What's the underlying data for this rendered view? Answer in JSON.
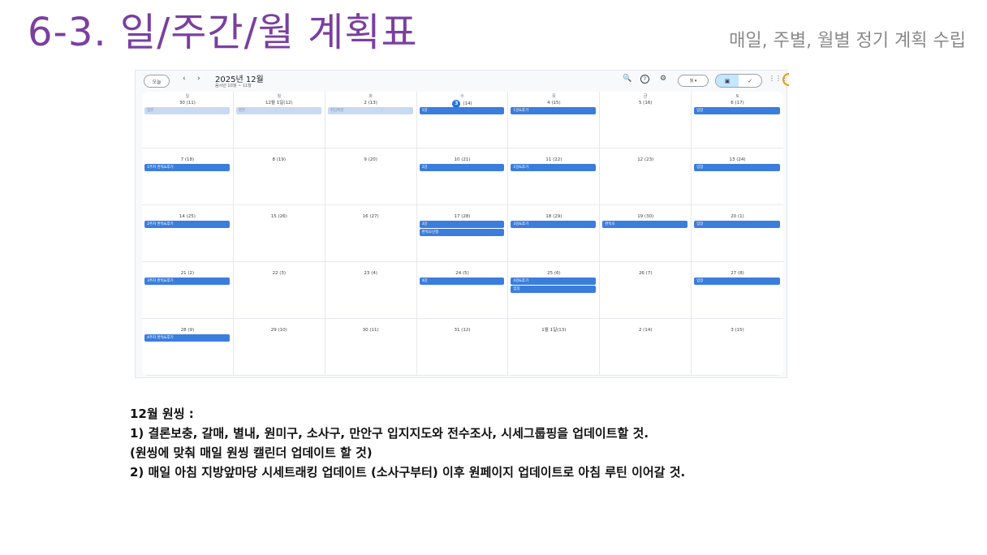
{
  "slide": {
    "title": "6-3. 일/주간/월 계획표",
    "subtitle": "매일, 주별, 월별 정기 계획 수립"
  },
  "calendar": {
    "today_button": "오늘",
    "prev_icon": "‹",
    "next_icon": "›",
    "month_title": "2025년 12월",
    "lunar_range": "음사년 10월 ~ 11월",
    "view_select": "월 ▾",
    "toolbar_icons": {
      "search": "🔍",
      "help": "?",
      "settings": "⚙",
      "calendar_view": "▣",
      "tasks_view": "✓",
      "apps": "⋮⋮⋮"
    },
    "weekdays": [
      "일",
      "월",
      "화",
      "수",
      "목",
      "금",
      "토"
    ],
    "weeks": [
      [
        {
          "date": "30 (11)",
          "events": [
            {
              "label": "결혼",
              "style": "light"
            }
          ]
        },
        {
          "date": "12월 1일(12)",
          "events": [
            {
              "label": "결혼",
              "style": "light"
            }
          ]
        },
        {
          "date": "2 (13)",
          "events": [
            {
              "label": "취임체결",
              "style": "light"
            }
          ]
        },
        {
          "date_num": "3",
          "date_lunar": "(14)",
          "today": true,
          "events": [
            {
              "label": "1강",
              "style": "solid"
            }
          ]
        },
        {
          "date": "4 (15)",
          "events": [
            {
              "label": "1강&후기",
              "style": "solid"
            }
          ]
        },
        {
          "date": "5 (16)",
          "events": []
        },
        {
          "date": "6 (17)",
          "events": [
            {
              "label": "임장",
              "style": "solid"
            }
          ]
        }
      ],
      [
        {
          "date": "7 (18)",
          "events": [
            {
              "label": "1주차 완독&후기",
              "style": "solid"
            }
          ]
        },
        {
          "date": "8 (19)",
          "events": []
        },
        {
          "date": "9 (20)",
          "events": []
        },
        {
          "date": "10 (21)",
          "events": [
            {
              "label": "2강",
              "style": "solid"
            }
          ]
        },
        {
          "date": "11 (22)",
          "events": [
            {
              "label": "2강&후기",
              "style": "solid"
            }
          ]
        },
        {
          "date": "12 (23)",
          "events": []
        },
        {
          "date": "13 (24)",
          "events": [
            {
              "label": "임장",
              "style": "solid"
            }
          ]
        }
      ],
      [
        {
          "date": "14 (25)",
          "events": [
            {
              "label": "2주차 완독&후기",
              "style": "solid"
            }
          ]
        },
        {
          "date": "15 (26)",
          "events": []
        },
        {
          "date": "16 (27)",
          "events": []
        },
        {
          "date": "17 (28)",
          "events": [
            {
              "label": "3강",
              "style": "solid"
            },
            {
              "label": "완독모신청",
              "style": "solid"
            }
          ]
        },
        {
          "date": "18 (29)",
          "events": [
            {
              "label": "3강&후기",
              "style": "solid"
            }
          ]
        },
        {
          "date": "19 (30)",
          "events": [
            {
              "label": "완독모",
              "style": "solid"
            }
          ]
        },
        {
          "date": "20 (1)",
          "events": [
            {
              "label": "임장",
              "style": "solid"
            }
          ]
        }
      ],
      [
        {
          "date": "21 (2)",
          "events": [
            {
              "label": "3주차 완독&후기",
              "style": "solid"
            }
          ]
        },
        {
          "date": "22 (3)",
          "events": []
        },
        {
          "date": "23 (4)",
          "events": []
        },
        {
          "date": "24 (5)",
          "events": [
            {
              "label": "4강",
              "style": "solid"
            }
          ]
        },
        {
          "date": "25 (6)",
          "events": [
            {
              "label": "4강&후기",
              "style": "solid"
            },
            {
              "label": "임장",
              "style": "solid"
            }
          ]
        },
        {
          "date": "26 (7)",
          "events": []
        },
        {
          "date": "27 (8)",
          "events": [
            {
              "label": "임장",
              "style": "solid"
            }
          ]
        }
      ],
      [
        {
          "date": "28 (9)",
          "events": [
            {
              "label": "4주차 완독&후기",
              "style": "solid"
            }
          ]
        },
        {
          "date": "29 (10)",
          "events": []
        },
        {
          "date": "30 (11)",
          "events": []
        },
        {
          "date": "31 (12)",
          "events": []
        },
        {
          "date": "1월 1일(13)",
          "events": []
        },
        {
          "date": "2 (14)",
          "events": []
        },
        {
          "date": "3 (15)",
          "events": []
        }
      ]
    ]
  },
  "notes": {
    "heading": "12월 원씽 :",
    "line1": "1) 결론보충, 갈매, 별내, 원미구, 소사구, 만안구 입지지도와 전수조사, 시세그룹핑을 업데이트할 것.",
    "line2": "(원씽에 맞춰 매일 원씽 캘린더 업데이트 할 것)",
    "line3": "2) 매일 아침 지방앞마당 시세트래킹 업데이트 (소사구부터) 이후 원페이지 업데이트로 아침 루틴 이어갈 것."
  }
}
